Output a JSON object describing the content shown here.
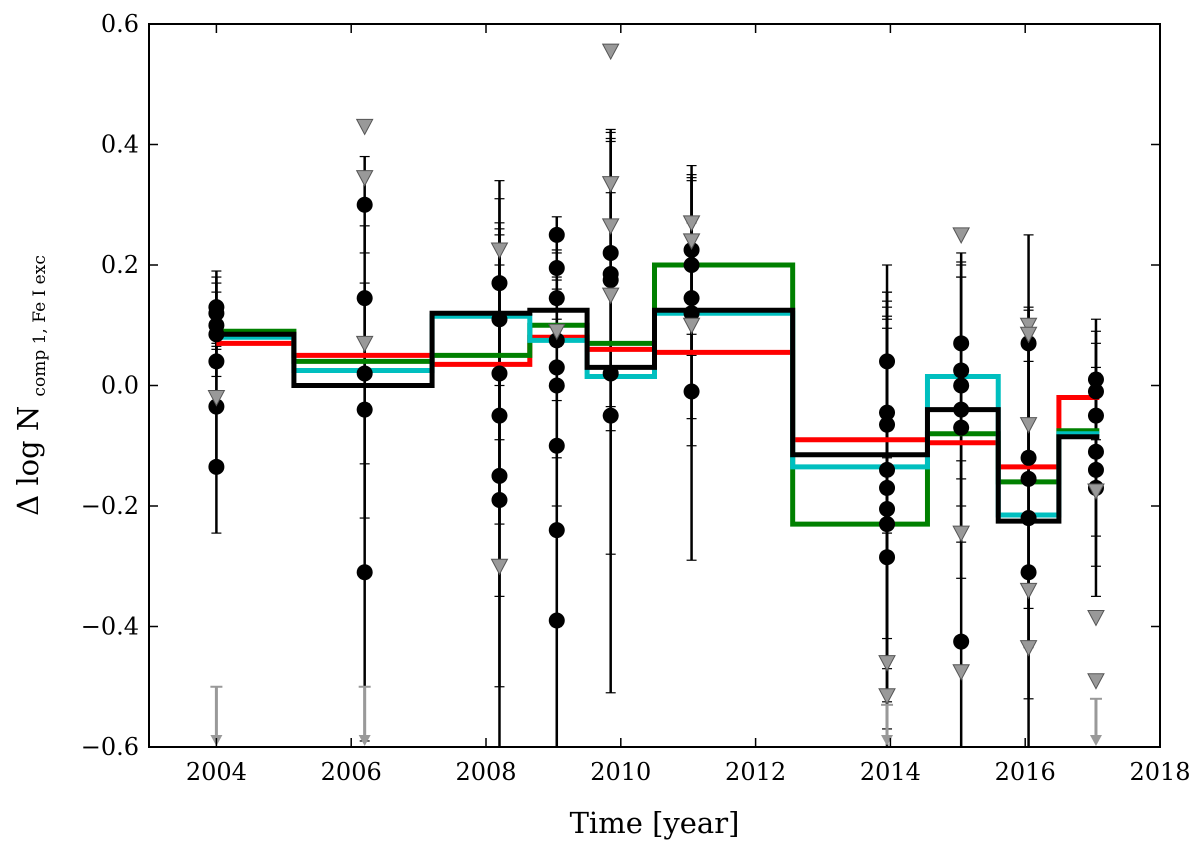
{
  "chart_data": {
    "type": "line",
    "xlabel": "Time [year]",
    "ylabel": "Δ log N",
    "ylabel_sub": "comp 1, Fe I exc",
    "xlim": [
      2003,
      2018
    ],
    "ylim": [
      -0.6,
      0.6
    ],
    "xticks": [
      2004,
      2006,
      2008,
      2010,
      2012,
      2014,
      2016,
      2018
    ],
    "yticks": [
      -0.6,
      -0.4,
      -0.2,
      0.0,
      0.2,
      0.4,
      0.6
    ],
    "xtick_labels": [
      "2004",
      "2006",
      "2008",
      "2010",
      "2012",
      "2014",
      "2016",
      "2018"
    ],
    "ytick_labels": [
      "−0.6",
      "−0.4",
      "−0.2",
      "0.0",
      "0.2",
      "0.4",
      "0.6"
    ],
    "grid": false,
    "colors": {
      "red": "#ff0000",
      "green": "#008000",
      "cyan": "#00bfbf",
      "black": "#000000",
      "gray": "#999999"
    },
    "step_series": [
      {
        "color": "red",
        "edges": [
          2004.0,
          2005.15,
          2007.2,
          2008.65,
          2009.5,
          2010.5,
          2012.55,
          2014.55,
          2015.6,
          2016.5,
          2017.1
        ],
        "values": [
          0.07,
          0.05,
          0.035,
          0.08,
          0.06,
          0.055,
          -0.09,
          -0.095,
          -0.135,
          -0.02
        ]
      },
      {
        "color": "green",
        "edges": [
          2004.0,
          2005.15,
          2007.2,
          2008.65,
          2009.5,
          2010.5,
          2012.55,
          2014.55,
          2015.6,
          2016.5,
          2017.1
        ],
        "values": [
          0.09,
          0.04,
          0.05,
          0.1,
          0.07,
          0.2,
          -0.23,
          -0.08,
          -0.16,
          -0.075
        ]
      },
      {
        "color": "cyan",
        "edges": [
          2004.0,
          2005.15,
          2007.2,
          2008.65,
          2009.5,
          2010.5,
          2012.55,
          2014.55,
          2015.6,
          2016.5,
          2017.1
        ],
        "values": [
          0.08,
          0.025,
          0.115,
          0.075,
          0.015,
          0.12,
          -0.135,
          0.015,
          -0.215,
          -0.08
        ]
      },
      {
        "color": "black",
        "edges": [
          2004.0,
          2005.15,
          2007.2,
          2008.65,
          2009.5,
          2010.5,
          2012.55,
          2014.55,
          2015.6,
          2016.5,
          2017.1
        ],
        "values": [
          0.085,
          0.0,
          0.12,
          0.125,
          0.03,
          0.125,
          -0.115,
          -0.04,
          -0.225,
          -0.085
        ]
      }
    ],
    "points": [
      {
        "x": 2004.0,
        "y": 0.13,
        "err": 0.06
      },
      {
        "x": 2004.0,
        "y": 0.12,
        "err": 0.06
      },
      {
        "x": 2004.0,
        "y": 0.1,
        "err": 0.07
      },
      {
        "x": 2004.0,
        "y": 0.085,
        "err": 0.07
      },
      {
        "x": 2004.0,
        "y": 0.04,
        "err": 0.08
      },
      {
        "x": 2004.0,
        "y": -0.035,
        "err": 0.1
      },
      {
        "x": 2004.0,
        "y": -0.135,
        "err": 0.11
      },
      {
        "x": 2006.2,
        "y": 0.3,
        "err": 0.08
      },
      {
        "x": 2006.2,
        "y": 0.145,
        "err": 0.12
      },
      {
        "x": 2006.2,
        "y": 0.02,
        "err": 0.15
      },
      {
        "x": 2006.2,
        "y": -0.04,
        "err": 0.18
      },
      {
        "x": 2006.2,
        "y": -0.31,
        "err": 0.28
      },
      {
        "x": 2008.2,
        "y": 0.17,
        "err": 0.17
      },
      {
        "x": 2008.2,
        "y": 0.11,
        "err": 0.2
      },
      {
        "x": 2008.2,
        "y": 0.02,
        "err": 0.25
      },
      {
        "x": 2008.2,
        "y": -0.05,
        "err": 0.3
      },
      {
        "x": 2008.2,
        "y": -0.15,
        "err": 0.35
      },
      {
        "x": 2008.2,
        "y": -0.19,
        "err": 0.45
      },
      {
        "x": 2009.05,
        "y": 0.25,
        "err": 0.03
      },
      {
        "x": 2009.05,
        "y": 0.195,
        "err": 0.06
      },
      {
        "x": 2009.05,
        "y": 0.145,
        "err": 0.08
      },
      {
        "x": 2009.05,
        "y": 0.075,
        "err": 0.1
      },
      {
        "x": 2009.05,
        "y": 0.03,
        "err": 0.15
      },
      {
        "x": 2009.05,
        "y": 0.0,
        "err": 0.2
      },
      {
        "x": 2009.05,
        "y": -0.1,
        "err": 0.3
      },
      {
        "x": 2009.05,
        "y": -0.24,
        "err": 0.4
      },
      {
        "x": 2009.05,
        "y": -0.39,
        "err": 0.5
      },
      {
        "x": 2009.85,
        "y": 0.22,
        "err": 0.2
      },
      {
        "x": 2009.85,
        "y": 0.185,
        "err": 0.22
      },
      {
        "x": 2009.85,
        "y": 0.175,
        "err": 0.25
      },
      {
        "x": 2009.85,
        "y": 0.02,
        "err": 0.3
      },
      {
        "x": 2009.85,
        "y": -0.05,
        "err": 0.46
      },
      {
        "x": 2011.05,
        "y": 0.225,
        "err": 0.14
      },
      {
        "x": 2011.05,
        "y": 0.2,
        "err": 0.15
      },
      {
        "x": 2011.05,
        "y": 0.145,
        "err": 0.2
      },
      {
        "x": 2011.05,
        "y": 0.12,
        "err": 0.22
      },
      {
        "x": 2011.05,
        "y": -0.01,
        "err": 0.28
      },
      {
        "x": 2013.95,
        "y": 0.04,
        "err": 0.16
      },
      {
        "x": 2013.95,
        "y": -0.045,
        "err": 0.2
      },
      {
        "x": 2013.95,
        "y": -0.065,
        "err": 0.22
      },
      {
        "x": 2013.95,
        "y": -0.14,
        "err": 0.28
      },
      {
        "x": 2013.95,
        "y": -0.17,
        "err": 0.3
      },
      {
        "x": 2013.95,
        "y": -0.205,
        "err": 0.32
      },
      {
        "x": 2013.95,
        "y": -0.23,
        "err": 0.34
      },
      {
        "x": 2013.95,
        "y": -0.285,
        "err": 0.38
      },
      {
        "x": 2015.05,
        "y": 0.07,
        "err": 0.15
      },
      {
        "x": 2015.05,
        "y": 0.025,
        "err": 0.18
      },
      {
        "x": 2015.05,
        "y": 0.0,
        "err": 0.2
      },
      {
        "x": 2015.05,
        "y": -0.04,
        "err": 0.22
      },
      {
        "x": 2015.05,
        "y": -0.07,
        "err": 0.25
      },
      {
        "x": 2015.05,
        "y": -0.425,
        "err": 0.3
      },
      {
        "x": 2016.05,
        "y": 0.07,
        "err": 0.18
      },
      {
        "x": 2016.05,
        "y": -0.12,
        "err": 0.25
      },
      {
        "x": 2016.05,
        "y": -0.155,
        "err": 0.28
      },
      {
        "x": 2016.05,
        "y": -0.22,
        "err": 0.3
      },
      {
        "x": 2016.05,
        "y": -0.31,
        "err": 0.35
      },
      {
        "x": 2017.05,
        "y": 0.01,
        "err": 0.1
      },
      {
        "x": 2017.05,
        "y": -0.01,
        "err": 0.1
      },
      {
        "x": 2017.05,
        "y": -0.05,
        "err": 0.12
      },
      {
        "x": 2017.05,
        "y": -0.11,
        "err": 0.14
      },
      {
        "x": 2017.05,
        "y": -0.14,
        "err": 0.16
      },
      {
        "x": 2017.05,
        "y": -0.17,
        "err": 0.18
      }
    ],
    "upper_limits": [
      {
        "x": 2004.0,
        "y": -0.02
      },
      {
        "x": 2006.2,
        "y": 0.43
      },
      {
        "x": 2006.2,
        "y": 0.345
      },
      {
        "x": 2006.2,
        "y": 0.07
      },
      {
        "x": 2008.2,
        "y": 0.225
      },
      {
        "x": 2008.2,
        "y": -0.3
      },
      {
        "x": 2009.05,
        "y": 0.09
      },
      {
        "x": 2009.85,
        "y": 0.555
      },
      {
        "x": 2009.85,
        "y": 0.335
      },
      {
        "x": 2009.85,
        "y": 0.265
      },
      {
        "x": 2009.85,
        "y": 0.15
      },
      {
        "x": 2011.05,
        "y": 0.27
      },
      {
        "x": 2011.05,
        "y": 0.24
      },
      {
        "x": 2011.05,
        "y": 0.1
      },
      {
        "x": 2013.95,
        "y": -0.46
      },
      {
        "x": 2013.95,
        "y": -0.515
      },
      {
        "x": 2015.05,
        "y": 0.25
      },
      {
        "x": 2015.05,
        "y": -0.245
      },
      {
        "x": 2015.05,
        "y": -0.475
      },
      {
        "x": 2016.05,
        "y": 0.1
      },
      {
        "x": 2016.05,
        "y": 0.085
      },
      {
        "x": 2016.05,
        "y": -0.065
      },
      {
        "x": 2016.05,
        "y": -0.34
      },
      {
        "x": 2016.05,
        "y": -0.435
      },
      {
        "x": 2017.05,
        "y": -0.175
      },
      {
        "x": 2017.05,
        "y": -0.385
      },
      {
        "x": 2017.05,
        "y": -0.49
      }
    ],
    "arrows": [
      {
        "x": 2004.0,
        "y_from": -0.5
      },
      {
        "x": 2006.2,
        "y_from": -0.5
      },
      {
        "x": 2013.95,
        "y_from": -0.53
      },
      {
        "x": 2017.05,
        "y_from": -0.52
      }
    ]
  }
}
